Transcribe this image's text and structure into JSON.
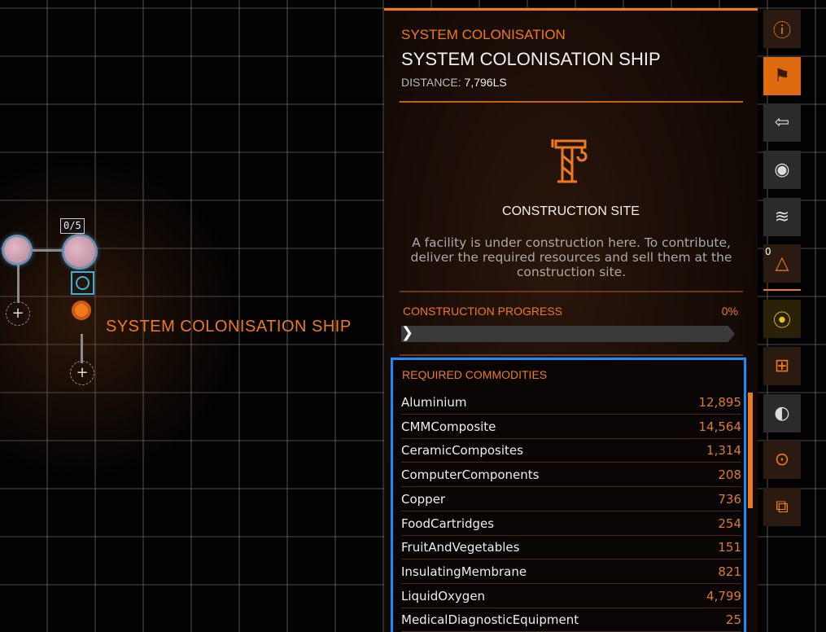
{
  "map": {
    "label": "SYSTEM COLONISATION SHIP",
    "badge": "0/5"
  },
  "panel": {
    "category": "SYSTEM COLONISATION",
    "title": "SYSTEM COLONISATION SHIP",
    "distance_label": "DISTANCE:",
    "distance_value": "7,796LS",
    "site_name": "CONSTRUCTION SITE",
    "site_description": "A facility is under construction here. To contribute, deliver the required resources and sell them at the construction site.",
    "progress_label": "CONSTRUCTION PROGRESS",
    "progress_value": "0%",
    "progress_fraction": 0
  },
  "commodities": {
    "title": "REQUIRED COMMODITIES",
    "items": [
      {
        "name": "Aluminium",
        "qty": "12,895"
      },
      {
        "name": "CMMComposite",
        "qty": "14,564"
      },
      {
        "name": "CeramicComposites",
        "qty": "1,314"
      },
      {
        "name": "ComputerComponents",
        "qty": "208"
      },
      {
        "name": "Copper",
        "qty": "736"
      },
      {
        "name": "FoodCartridges",
        "qty": "254"
      },
      {
        "name": "FruitAndVegetables",
        "qty": "151"
      },
      {
        "name": "InsulatingMembrane",
        "qty": "821"
      },
      {
        "name": "LiquidOxygen",
        "qty": "4,799"
      },
      {
        "name": "MedicalDiagnosticEquipment",
        "qty": "25"
      }
    ]
  },
  "sidebar": {
    "badge_count": "0",
    "icons": [
      "planet-info-icon",
      "colonise-flag-icon",
      "body-swap-icon",
      "orbit-icon",
      "dna-icon",
      "surface-icon",
      "route-icon",
      "bookmark-add-icon",
      "moon-icon",
      "target-icon",
      "switch-icon"
    ]
  },
  "colors": {
    "accent": "#f07a1e",
    "selection": "#1a8cff"
  }
}
